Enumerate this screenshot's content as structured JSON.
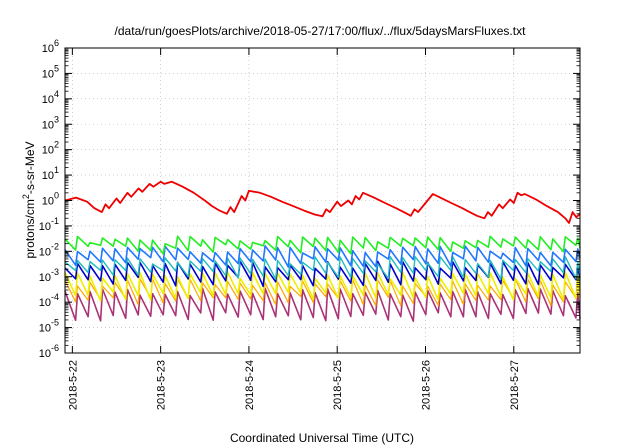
{
  "chart_data": {
    "type": "line",
    "title": "/data/run/goesPlots/archive/2018-05-27/17:00/flux/../flux/5daysMarsFluxes.txt",
    "xlabel": "Coordinated Universal Time (UTC)",
    "ylabel_parts": [
      "protons/cm",
      "2",
      "-s-sr-MeV"
    ],
    "y_scale": "log",
    "ylim": [
      1e-06,
      1000000.0
    ],
    "y_tick_exponents": [
      -6,
      -5,
      -4,
      -3,
      -2,
      -1,
      0,
      1,
      2,
      3,
      4,
      5,
      6
    ],
    "y_tick_base": "10",
    "xlim": [
      "2018-05-21T22:00",
      "2018-05-27T18:00"
    ],
    "x_ticks": [
      "2018-5-22",
      "2018-5-23",
      "2018-5-24",
      "2018-5-25",
      "2018-5-26",
      "2018-5-27"
    ],
    "x_tick_dates": [
      "2018-05-22T00:00",
      "2018-05-23T00:00",
      "2018-05-24T00:00",
      "2018-05-25T00:00",
      "2018-05-26T00:00",
      "2018-05-27T00:00"
    ],
    "grid": true,
    "series": [
      {
        "color": "#ee0000",
        "width": 1.8,
        "points": [
          [
            "2018-05-21T22:00",
            1.0
          ],
          [
            "2018-05-22T01:00",
            1.3
          ],
          [
            "2018-05-22T04:00",
            0.9
          ],
          [
            "2018-05-22T06:00",
            0.5
          ],
          [
            "2018-05-22T08:00",
            0.35
          ],
          [
            "2018-05-22T09:00",
            0.7
          ],
          [
            "2018-05-22T10:00",
            0.5
          ],
          [
            "2018-05-22T12:00",
            1.2
          ],
          [
            "2018-05-22T13:00",
            0.8
          ],
          [
            "2018-05-22T15:00",
            2.0
          ],
          [
            "2018-05-22T16:00",
            1.4
          ],
          [
            "2018-05-22T18:00",
            3.0
          ],
          [
            "2018-05-22T19:00",
            2.2
          ],
          [
            "2018-05-22T21:00",
            4.5
          ],
          [
            "2018-05-22T22:00",
            3.5
          ],
          [
            "2018-05-23T00:00",
            5.5
          ],
          [
            "2018-05-23T01:00",
            4.5
          ],
          [
            "2018-05-23T03:00",
            5.5
          ],
          [
            "2018-05-23T06:00",
            3.5
          ],
          [
            "2018-05-23T09:00",
            2.0
          ],
          [
            "2018-05-23T12:00",
            1.0
          ],
          [
            "2018-05-23T14:00",
            0.6
          ],
          [
            "2018-05-23T16:00",
            0.4
          ],
          [
            "2018-05-23T18:00",
            0.3
          ],
          [
            "2018-05-23T19:00",
            0.55
          ],
          [
            "2018-05-23T20:00",
            0.35
          ],
          [
            "2018-05-23T22:00",
            1.5
          ],
          [
            "2018-05-23T23:00",
            1.0
          ],
          [
            "2018-05-24T00:00",
            2.4
          ],
          [
            "2018-05-24T03:00",
            2.0
          ],
          [
            "2018-05-24T06:00",
            1.4
          ],
          [
            "2018-05-24T09:00",
            0.9
          ],
          [
            "2018-05-24T12:00",
            0.6
          ],
          [
            "2018-05-24T15:00",
            0.4
          ],
          [
            "2018-05-24T18:00",
            0.28
          ],
          [
            "2018-05-24T20:00",
            0.24
          ],
          [
            "2018-05-24T21:00",
            0.45
          ],
          [
            "2018-05-24T22:00",
            0.35
          ],
          [
            "2018-05-25T00:00",
            0.9
          ],
          [
            "2018-05-25T01:00",
            0.6
          ],
          [
            "2018-05-25T03:00",
            1.0
          ],
          [
            "2018-05-25T04:00",
            0.7
          ],
          [
            "2018-05-25T05:00",
            1.5
          ],
          [
            "2018-05-25T06:00",
            1.1
          ],
          [
            "2018-05-25T07:00",
            2.0
          ],
          [
            "2018-05-25T10:00",
            1.3
          ],
          [
            "2018-05-25T13:00",
            0.8
          ],
          [
            "2018-05-25T16:00",
            0.5
          ],
          [
            "2018-05-25T19:00",
            0.3
          ],
          [
            "2018-05-25T20:00",
            0.25
          ],
          [
            "2018-05-25T21:00",
            0.45
          ],
          [
            "2018-05-25T22:00",
            0.35
          ],
          [
            "2018-05-26T00:00",
            0.8
          ],
          [
            "2018-05-26T02:00",
            1.8
          ],
          [
            "2018-05-26T04:00",
            1.3
          ],
          [
            "2018-05-26T07:00",
            0.8
          ],
          [
            "2018-05-26T10:00",
            0.5
          ],
          [
            "2018-05-26T12:00",
            0.35
          ],
          [
            "2018-05-26T14:00",
            0.25
          ],
          [
            "2018-05-26T16:00",
            0.2
          ],
          [
            "2018-05-26T17:00",
            0.35
          ],
          [
            "2018-05-26T18:00",
            0.25
          ],
          [
            "2018-05-26T20:00",
            0.7
          ],
          [
            "2018-05-26T21:00",
            0.5
          ],
          [
            "2018-05-26T23:00",
            1.1
          ],
          [
            "2018-05-27T00:00",
            0.8
          ],
          [
            "2018-05-27T01:00",
            2.0
          ],
          [
            "2018-05-27T02:00",
            1.6
          ],
          [
            "2018-05-27T03:00",
            1.8
          ],
          [
            "2018-05-27T06:00",
            1.1
          ],
          [
            "2018-05-27T09:00",
            0.6
          ],
          [
            "2018-05-27T12:00",
            0.35
          ],
          [
            "2018-05-27T14:00",
            0.2
          ],
          [
            "2018-05-27T15:00",
            0.13
          ],
          [
            "2018-05-27T16:00",
            0.35
          ],
          [
            "2018-05-27T17:00",
            0.22
          ],
          [
            "2018-05-27T18:00",
            0.3
          ]
        ]
      },
      {
        "color": "#22ee22",
        "width": 1.6,
        "base": 0.028,
        "low": 0.013,
        "period_hours": 3.4,
        "seed": 1
      },
      {
        "color": "#2277ff",
        "width": 1.6,
        "base": 0.012,
        "low": 0.004,
        "period_hours": 3.4,
        "seed": 2
      },
      {
        "color": "#22bbbb",
        "width": 1.4,
        "base": 0.0045,
        "low": 0.0013,
        "period_hours": 3.4,
        "seed": 3
      },
      {
        "color": "#0000cc",
        "width": 1.6,
        "base": 0.003,
        "low": 0.0007,
        "period_hours": 3.4,
        "seed": 4
      },
      {
        "color": "#eeee00",
        "width": 1.6,
        "base": 0.0011,
        "low": 0.00018,
        "period_hours": 3.4,
        "seed": 5
      },
      {
        "color": "#ffa500",
        "width": 1.2,
        "base": 0.0006,
        "low": 0.00012,
        "period_hours": 3.4,
        "seed": 6
      },
      {
        "color": "#aa3377",
        "width": 1.6,
        "base": 0.00025,
        "low": 2.8e-05,
        "period_hours": 3.4,
        "seed": 7
      }
    ]
  }
}
